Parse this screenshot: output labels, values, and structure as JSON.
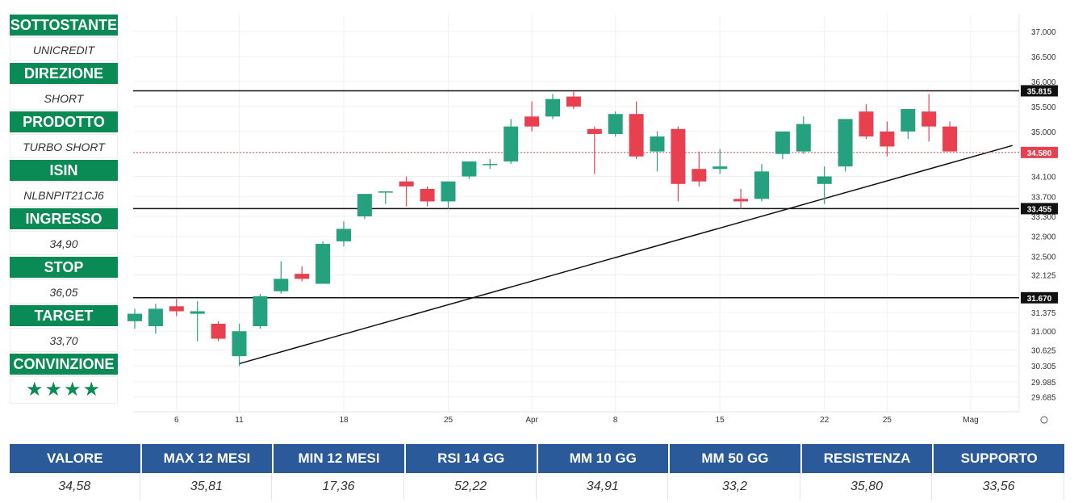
{
  "sidebar": {
    "items": [
      {
        "label": "SOTTOSTANTE",
        "value": "UNICREDIT"
      },
      {
        "label": "DIREZIONE",
        "value": "SHORT"
      },
      {
        "label": "PRODOTTO",
        "value": "TURBO SHORT"
      },
      {
        "label": "ISIN",
        "value": "NLBNPIT21CJ6"
      },
      {
        "label": "INGRESSO",
        "value": "34,90"
      },
      {
        "label": "STOP",
        "value": "36,05"
      },
      {
        "label": "TARGET",
        "value": "33,70"
      },
      {
        "label": "CONVINZIONE",
        "value": "★★★★"
      }
    ]
  },
  "stats": [
    {
      "label": "VALORE",
      "value": "34,58"
    },
    {
      "label": "MAX 12 MESI",
      "value": "35,81"
    },
    {
      "label": "MIN 12 MESI",
      "value": "17,36"
    },
    {
      "label": "RSI 14 GG",
      "value": "52,22"
    },
    {
      "label": "MM 10 GG",
      "value": "34,91"
    },
    {
      "label": "MM 50 GG",
      "value": "33,2"
    },
    {
      "label": "RESISTENZA",
      "value": "35,80"
    },
    {
      "label": "SUPPORTO",
      "value": "33,56"
    }
  ],
  "colors": {
    "up": "#26a17f",
    "down": "#e8404f",
    "accent": "#0a8a55",
    "stats_header": "#2a5a9a"
  },
  "chart_data": {
    "type": "candlestick",
    "y_ticks": [
      "37.000",
      "36.500",
      "36.000",
      "35.500",
      "35.000",
      "34.100",
      "33.700",
      "33.300",
      "32.900",
      "32.500",
      "32.125",
      "31.375",
      "31.000",
      "30.625",
      "30.305",
      "29.985",
      "29.685"
    ],
    "x_labels": [
      {
        "label": "6",
        "index": 2
      },
      {
        "label": "11",
        "index": 5
      },
      {
        "label": "18",
        "index": 10
      },
      {
        "label": "25",
        "index": 15
      },
      {
        "label": "Apr",
        "index": 19
      },
      {
        "label": "8",
        "index": 23
      },
      {
        "label": "15",
        "index": 28
      },
      {
        "label": "22",
        "index": 33
      },
      {
        "label": "25",
        "index": 36
      },
      {
        "label": "Mag",
        "index": 40
      }
    ],
    "candles": [
      {
        "o": 31.2,
        "h": 31.45,
        "l": 31.05,
        "c": 31.35
      },
      {
        "o": 31.1,
        "h": 31.55,
        "l": 30.95,
        "c": 31.45
      },
      {
        "o": 31.5,
        "h": 31.65,
        "l": 31.3,
        "c": 31.4
      },
      {
        "o": 31.35,
        "h": 31.6,
        "l": 30.8,
        "c": 31.4
      },
      {
        "o": 31.15,
        "h": 31.2,
        "l": 30.8,
        "c": 30.85
      },
      {
        "o": 30.5,
        "h": 31.15,
        "l": 30.3,
        "c": 31.0
      },
      {
        "o": 31.1,
        "h": 31.75,
        "l": 31.05,
        "c": 31.7
      },
      {
        "o": 31.8,
        "h": 32.4,
        "l": 31.75,
        "c": 32.05
      },
      {
        "o": 32.15,
        "h": 32.3,
        "l": 32.0,
        "c": 32.05
      },
      {
        "o": 31.95,
        "h": 32.8,
        "l": 31.95,
        "c": 32.75
      },
      {
        "o": 32.8,
        "h": 33.2,
        "l": 32.7,
        "c": 33.05
      },
      {
        "o": 33.3,
        "h": 33.75,
        "l": 33.25,
        "c": 33.75
      },
      {
        "o": 33.8,
        "h": 33.8,
        "l": 33.55,
        "c": 33.8
      },
      {
        "o": 34.0,
        "h": 34.1,
        "l": 33.5,
        "c": 33.9
      },
      {
        "o": 33.85,
        "h": 33.9,
        "l": 33.5,
        "c": 33.6
      },
      {
        "o": 33.6,
        "h": 34.0,
        "l": 33.45,
        "c": 34.0
      },
      {
        "o": 34.1,
        "h": 34.4,
        "l": 34.05,
        "c": 34.4
      },
      {
        "o": 34.35,
        "h": 34.45,
        "l": 34.25,
        "c": 34.35
      },
      {
        "o": 34.4,
        "h": 35.25,
        "l": 34.35,
        "c": 35.1
      },
      {
        "o": 35.3,
        "h": 35.6,
        "l": 35.0,
        "c": 35.1
      },
      {
        "o": 35.3,
        "h": 35.75,
        "l": 35.25,
        "c": 35.65
      },
      {
        "o": 35.7,
        "h": 35.8,
        "l": 35.45,
        "c": 35.5
      },
      {
        "o": 35.05,
        "h": 35.1,
        "l": 34.15,
        "c": 34.95
      },
      {
        "o": 34.95,
        "h": 35.4,
        "l": 34.9,
        "c": 35.35
      },
      {
        "o": 35.35,
        "h": 35.6,
        "l": 34.45,
        "c": 34.5
      },
      {
        "o": 34.6,
        "h": 35.0,
        "l": 34.2,
        "c": 34.9
      },
      {
        "o": 35.05,
        "h": 35.1,
        "l": 33.6,
        "c": 33.95
      },
      {
        "o": 34.25,
        "h": 34.6,
        "l": 33.9,
        "c": 34.0
      },
      {
        "o": 34.25,
        "h": 34.65,
        "l": 34.15,
        "c": 34.3
      },
      {
        "o": 33.65,
        "h": 33.85,
        "l": 33.45,
        "c": 33.6
      },
      {
        "o": 33.65,
        "h": 34.35,
        "l": 33.6,
        "c": 34.2
      },
      {
        "o": 34.55,
        "h": 35.0,
        "l": 34.45,
        "c": 35.0
      },
      {
        "o": 34.6,
        "h": 35.3,
        "l": 34.55,
        "c": 35.15
      },
      {
        "o": 33.95,
        "h": 34.3,
        "l": 33.55,
        "c": 34.1
      },
      {
        "o": 34.3,
        "h": 35.25,
        "l": 34.2,
        "c": 35.25
      },
      {
        "o": 35.4,
        "h": 35.55,
        "l": 34.85,
        "c": 34.9
      },
      {
        "o": 35.0,
        "h": 35.2,
        "l": 34.5,
        "c": 34.7
      },
      {
        "o": 35.0,
        "h": 35.45,
        "l": 34.85,
        "c": 35.45
      },
      {
        "o": 35.4,
        "h": 35.75,
        "l": 34.8,
        "c": 35.1
      },
      {
        "o": 35.1,
        "h": 35.2,
        "l": 34.6,
        "c": 34.6
      }
    ],
    "levels": [
      {
        "label": "35.815",
        "value": 35.815,
        "style": "solid"
      },
      {
        "label": "34.580",
        "value": 34.58,
        "style": "dotted",
        "color": "#e8404f"
      },
      {
        "label": "33.455",
        "value": 33.455,
        "style": "solid"
      },
      {
        "label": "31.670",
        "value": 31.67,
        "style": "solid"
      }
    ],
    "trendline": {
      "from": {
        "index": 5,
        "value": 30.35
      },
      "to": {
        "index": 42,
        "value": 34.72
      }
    }
  }
}
